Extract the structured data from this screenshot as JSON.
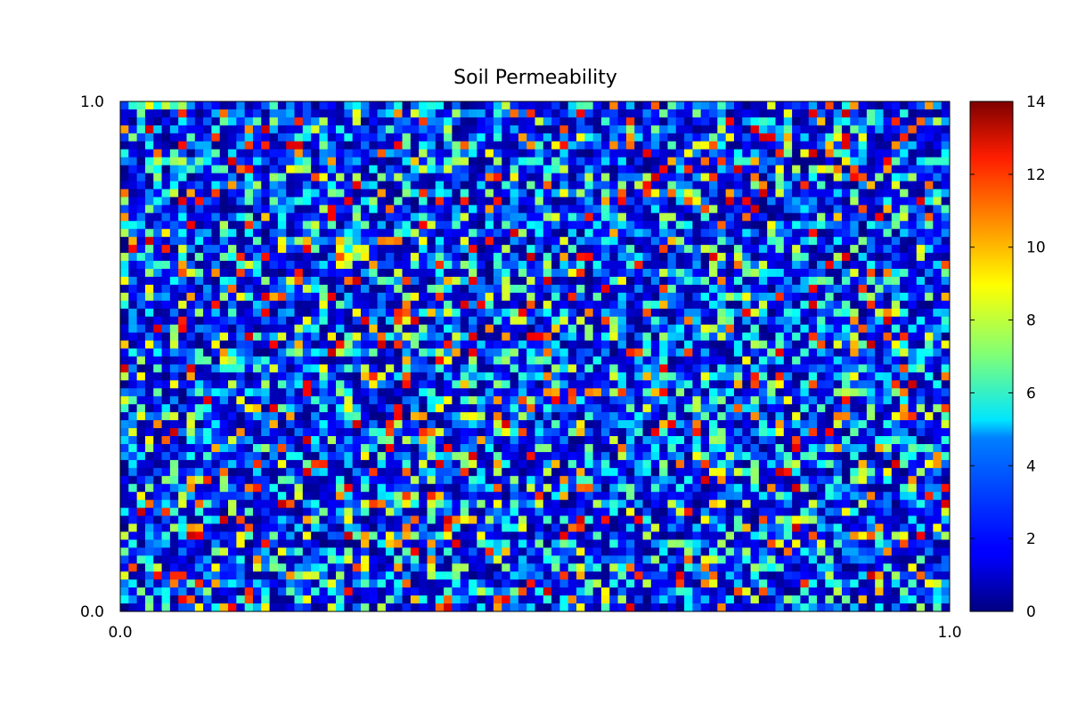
{
  "chart_data": {
    "type": "heatmap",
    "title": "Soil Permeability",
    "xlabel": "",
    "ylabel": "",
    "xlim": [
      0.0,
      1.0
    ],
    "ylim": [
      0.0,
      1.0
    ],
    "x_ticks": [
      "0.0",
      "1.0"
    ],
    "y_ticks": [
      "0.0",
      "1.0"
    ],
    "colormap": "jet",
    "value_range": [
      0,
      14
    ],
    "colorbar_ticks": [
      "0",
      "2",
      "4",
      "6",
      "8",
      "10",
      "12",
      "14"
    ],
    "grid": [
      100,
      64
    ],
    "distribution": "random field, mostly low values (0–4), scattered highs up to ~13",
    "grid_lines": false,
    "colorbar_position": "right"
  }
}
